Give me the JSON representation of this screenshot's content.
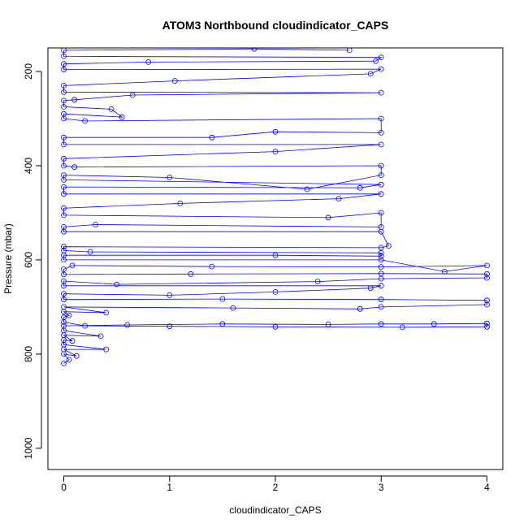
{
  "chart_data": {
    "type": "line",
    "title": "ATOM3 Northbound cloudindicator_CAPS",
    "xlabel": "cloudindicator_CAPS",
    "ylabel": "Pressure (mbar)",
    "xlim": [
      -0.15,
      4.15
    ],
    "ylim_reversed": [
      1045,
      150
    ],
    "xticks": [
      "0",
      "1",
      "2",
      "3",
      "4"
    ],
    "yticks": [
      "200",
      "400",
      "600",
      "800",
      "1000"
    ],
    "grid": false,
    "legend": "none",
    "series_color": "#0000ff",
    "estimated_ranges": {
      "x": [
        0,
        4
      ],
      "pressure": [
        150,
        820
      ],
      "note": "dense overplotted profile; points clustered at x=0 and x=3 columns and at x=4 below ~610 mbar"
    },
    "series": [
      {
        "points": [
          [
            0.0,
            820
          ],
          [
            0.05,
            812
          ],
          [
            0.0,
            800
          ],
          [
            0.12,
            804
          ],
          [
            0.0,
            790
          ],
          [
            0.4,
            790
          ],
          [
            0.0,
            780
          ],
          [
            0.0,
            770
          ],
          [
            0.08,
            772
          ],
          [
            0.0,
            760
          ],
          [
            0.35,
            762
          ],
          [
            0.0,
            750
          ],
          [
            0.0,
            740
          ],
          [
            0.6,
            738
          ],
          [
            1.5,
            736
          ],
          [
            2.5,
            737
          ],
          [
            3.0,
            736
          ],
          [
            3.5,
            736
          ],
          [
            4.0,
            735
          ],
          [
            4.0,
            742
          ],
          [
            3.2,
            743
          ],
          [
            2.0,
            742
          ],
          [
            1.0,
            741
          ],
          [
            0.2,
            740
          ],
          [
            0.0,
            732
          ],
          [
            0.0,
            722
          ],
          [
            0.05,
            718
          ],
          [
            0.0,
            710
          ],
          [
            0.4,
            712
          ],
          [
            0.0,
            700
          ],
          [
            1.6,
            702
          ],
          [
            2.8,
            704
          ],
          [
            3.0,
            700
          ],
          [
            4.0,
            695
          ],
          [
            4.0,
            686
          ],
          [
            3.0,
            684
          ],
          [
            1.5,
            683
          ],
          [
            0.0,
            684
          ],
          [
            0.0,
            672
          ],
          [
            1.0,
            675
          ],
          [
            2.0,
            668
          ],
          [
            2.9,
            660
          ],
          [
            3.0,
            655
          ],
          [
            0.0,
            655
          ],
          [
            0.0,
            645
          ],
          [
            0.5,
            652
          ],
          [
            2.4,
            646
          ],
          [
            3.0,
            640
          ],
          [
            4.0,
            638
          ],
          [
            4.0,
            630
          ],
          [
            3.0,
            629
          ],
          [
            1.2,
            630
          ],
          [
            0.0,
            631
          ],
          [
            0.0,
            620
          ],
          [
            0.08,
            612
          ],
          [
            1.4,
            614
          ],
          [
            3.0,
            615
          ],
          [
            4.0,
            612
          ],
          [
            3.6,
            625
          ],
          [
            3.0,
            600
          ],
          [
            0.0,
            600
          ],
          [
            0.0,
            590
          ],
          [
            2.0,
            590
          ],
          [
            3.0,
            592
          ],
          [
            3.0,
            585
          ],
          [
            0.25,
            583
          ],
          [
            0.0,
            580
          ],
          [
            0.0,
            572
          ],
          [
            3.0,
            574
          ],
          [
            3.07,
            570
          ],
          [
            3.0,
            540
          ],
          [
            0.0,
            540
          ],
          [
            0.0,
            530
          ],
          [
            0.3,
            525
          ],
          [
            3.0,
            530
          ],
          [
            3.0,
            500
          ],
          [
            2.5,
            510
          ],
          [
            0.0,
            505
          ],
          [
            0.0,
            490
          ],
          [
            1.1,
            480
          ],
          [
            2.6,
            470
          ],
          [
            3.0,
            460
          ],
          [
            0.0,
            460
          ],
          [
            0.0,
            445
          ],
          [
            2.8,
            447
          ],
          [
            3.0,
            440
          ],
          [
            0.0,
            430
          ],
          [
            0.0,
            420
          ],
          [
            1.0,
            425
          ],
          [
            2.3,
            450
          ],
          [
            3.0,
            420
          ],
          [
            3.0,
            400
          ],
          [
            0.1,
            403
          ],
          [
            0.0,
            400
          ],
          [
            0.0,
            385
          ],
          [
            2.0,
            370
          ],
          [
            3.0,
            355
          ],
          [
            0.0,
            355
          ],
          [
            0.0,
            340
          ],
          [
            1.4,
            340
          ],
          [
            2.0,
            328
          ],
          [
            3.0,
            330
          ],
          [
            3.0,
            300
          ],
          [
            0.2,
            305
          ],
          [
            0.0,
            300
          ],
          [
            0.0,
            290
          ],
          [
            0.55,
            297
          ],
          [
            0.45,
            280
          ],
          [
            0.0,
            275
          ],
          [
            0.0,
            262
          ],
          [
            0.1,
            260
          ],
          [
            0.65,
            250
          ],
          [
            3.0,
            245
          ],
          [
            0.0,
            244
          ],
          [
            0.0,
            230
          ],
          [
            1.05,
            220
          ],
          [
            2.9,
            205
          ],
          [
            3.0,
            195
          ],
          [
            0.0,
            196
          ],
          [
            0.0,
            184
          ],
          [
            0.8,
            180
          ],
          [
            2.95,
            178
          ],
          [
            3.0,
            170
          ],
          [
            0.0,
            168
          ],
          [
            0.0,
            155
          ],
          [
            1.8,
            152
          ],
          [
            2.7,
            155
          ]
        ]
      }
    ]
  }
}
